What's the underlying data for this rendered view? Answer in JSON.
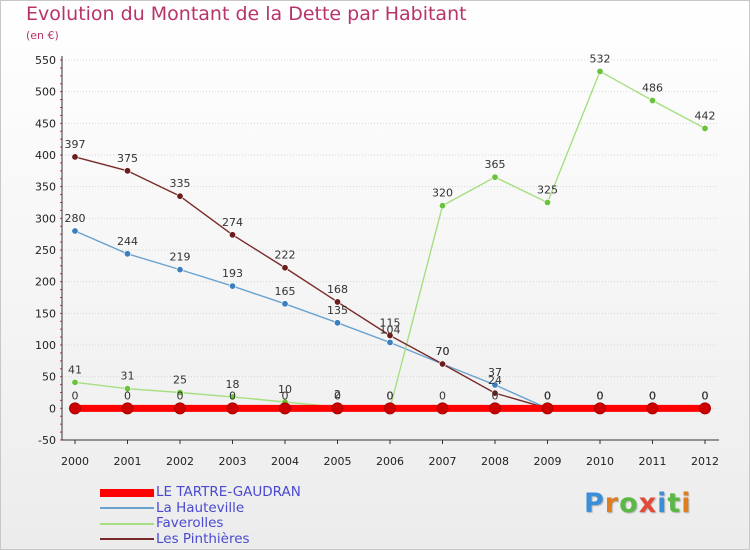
{
  "header": {
    "title": "Evolution du Montant de la Dette par Habitant",
    "subtitle": "(en €)"
  },
  "logo": {
    "text": "Proxiti",
    "colors": [
      "#3a8fd8",
      "#e07d1e",
      "#5bb846",
      "#e04a3a",
      "#3a8fd8",
      "#5bb846",
      "#e07d1e"
    ]
  },
  "colors": {
    "title": "#b8336a",
    "legend_text": "#4a4ad0",
    "grid": "#d6d6d6",
    "axis": "#333333"
  },
  "chart_data": {
    "type": "line",
    "title": "Evolution du Montant de la Dette par Habitant",
    "subtitle": "(en €)",
    "xlabel": "",
    "ylabel": "",
    "x": [
      "2000",
      "2001",
      "2002",
      "2003",
      "2004",
      "2005",
      "2006",
      "2007",
      "2008",
      "2009",
      "2010",
      "2011",
      "2012"
    ],
    "ylim": [
      -50,
      550
    ],
    "yticks": [
      -50,
      0,
      50,
      100,
      150,
      200,
      250,
      300,
      350,
      400,
      450,
      500,
      550
    ],
    "grid": "horizontal",
    "legend_position": "bottom-left",
    "series": [
      {
        "name": "LE TARTRE-GAUDRAN",
        "color": "#ff0000",
        "marker_color": "#cc0000",
        "thick": true,
        "values": [
          0,
          0,
          0,
          0,
          0,
          0,
          0,
          0,
          0,
          0,
          0,
          0,
          0
        ],
        "labels": [
          "0",
          "0",
          "0",
          "0",
          "0",
          "0",
          "0",
          "0",
          "0",
          "0",
          "0",
          "0",
          "0"
        ]
      },
      {
        "name": "La Hauteville",
        "color": "#6aa2cf",
        "marker_color": "#3b7fbf",
        "thick": false,
        "values": [
          280,
          244,
          219,
          193,
          165,
          135,
          104,
          70,
          37,
          0,
          0,
          0,
          0
        ],
        "labels": [
          "280",
          "244",
          "219",
          "193",
          "165",
          "135",
          "104",
          "70",
          "37",
          "0",
          "0",
          "0",
          "0"
        ]
      },
      {
        "name": "Faverolles",
        "color": "#a6df82",
        "marker_color": "#6cc23a",
        "thick": false,
        "values": [
          41,
          31,
          25,
          18,
          10,
          2,
          0,
          320,
          365,
          325,
          532,
          486,
          442
        ],
        "labels": [
          "41",
          "31",
          "25",
          "18",
          "10",
          "2",
          "0",
          "320",
          "365",
          "325",
          "532",
          "486",
          "442"
        ]
      },
      {
        "name": "Les Pinthières",
        "color": "#7a2a2a",
        "marker_color": "#6b1d1d",
        "thick": false,
        "values": [
          397,
          375,
          335,
          274,
          222,
          168,
          115,
          70,
          24,
          0,
          0,
          0,
          0
        ],
        "labels": [
          "397",
          "375",
          "335",
          "274",
          "222",
          "168",
          "115",
          "70",
          "24",
          "0",
          "0",
          "0",
          "0"
        ]
      }
    ]
  }
}
